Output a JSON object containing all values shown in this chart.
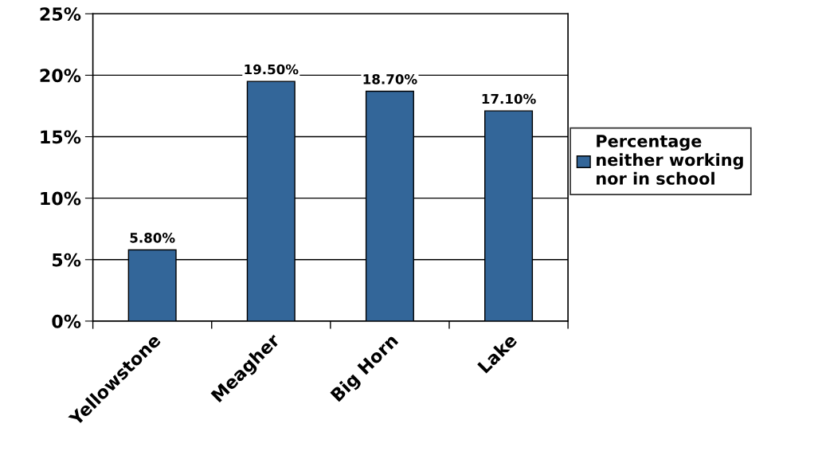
{
  "chart_data": {
    "type": "bar",
    "categories": [
      "Yellowstone",
      "Meagher",
      "Big Horn",
      "Lake"
    ],
    "series": [
      {
        "name": "Percentage\nneither working\nnor in school",
        "color": "#336699",
        "values": [
          5.8,
          19.5,
          18.7,
          17.1
        ],
        "value_labels": [
          "5.80%",
          "19.50%",
          "18.70%",
          "17.10%"
        ]
      }
    ],
    "ylim": [
      0,
      25
    ],
    "yticks": [
      {
        "value": 0,
        "label": "0%"
      },
      {
        "value": 5,
        "label": "5%"
      },
      {
        "value": 10,
        "label": "10%"
      },
      {
        "value": 15,
        "label": "15%"
      },
      {
        "value": 20,
        "label": "20%"
      },
      {
        "value": 25,
        "label": "25%"
      }
    ],
    "grid": "y",
    "legend": "right"
  }
}
